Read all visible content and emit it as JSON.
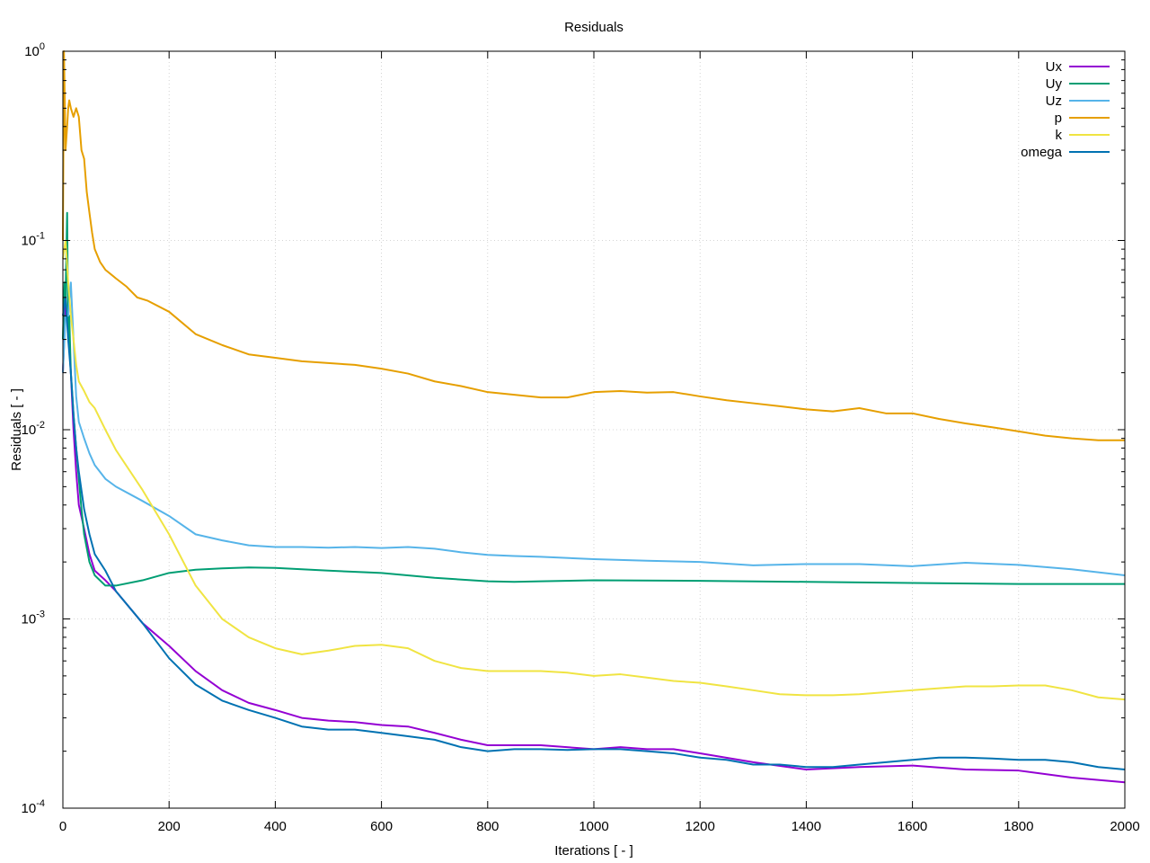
{
  "chart_data": {
    "type": "line",
    "title": "Residuals",
    "xlabel": "Iterations [ - ]",
    "ylabel": "Residuals [ - ]",
    "xlim": [
      0,
      2000
    ],
    "ylim": [
      0.0001,
      1
    ],
    "yscale": "log",
    "grid": true,
    "legend_position": "top-right",
    "x_ticks": [
      0,
      200,
      400,
      600,
      800,
      1000,
      1200,
      1400,
      1600,
      1800,
      2000
    ],
    "y_ticks": [
      {
        "value": 1,
        "mantissa": "10",
        "exp": "0"
      },
      {
        "value": 0.1,
        "mantissa": "10",
        "exp": "-1"
      },
      {
        "value": 0.01,
        "mantissa": "10",
        "exp": "-2"
      },
      {
        "value": 0.001,
        "mantissa": "10",
        "exp": "-3"
      },
      {
        "value": 0.0001,
        "mantissa": "10",
        "exp": "-4"
      }
    ],
    "series": [
      {
        "name": "Ux",
        "color": "#9400d3",
        "x": [
          0,
          5,
          10,
          15,
          20,
          25,
          30,
          40,
          50,
          60,
          80,
          100,
          150,
          200,
          250,
          300,
          350,
          400,
          450,
          500,
          550,
          600,
          650,
          700,
          750,
          800,
          850,
          900,
          1000,
          1050,
          1100,
          1150,
          1200,
          1300,
          1400,
          1500,
          1600,
          1700,
          1800,
          1900,
          2000
        ],
        "y": [
          0.02,
          0.045,
          0.035,
          0.02,
          0.01,
          0.006,
          0.004,
          0.003,
          0.0022,
          0.0018,
          0.0016,
          0.0014,
          0.00095,
          0.00072,
          0.00053,
          0.00042,
          0.00036,
          0.00033,
          0.0003,
          0.00029,
          0.000285,
          0.000275,
          0.00027,
          0.00025,
          0.00023,
          0.000215,
          0.000215,
          0.000215,
          0.000205,
          0.00021,
          0.000205,
          0.000205,
          0.000195,
          0.000175,
          0.00016,
          0.000165,
          0.000168,
          0.00016,
          0.000158,
          0.000145,
          0.000137
        ]
      },
      {
        "name": "Uy",
        "color": "#009e73",
        "x": [
          0,
          3,
          5,
          8,
          10,
          12,
          15,
          18,
          20,
          25,
          30,
          35,
          40,
          50,
          60,
          80,
          100,
          150,
          200,
          250,
          300,
          350,
          400,
          450,
          500,
          600,
          700,
          800,
          850,
          900,
          1000,
          1200,
          1400,
          1600,
          1800,
          2000
        ],
        "y": [
          0.03,
          0.06,
          0.05,
          0.14,
          0.03,
          0.04,
          0.02,
          0.015,
          0.012,
          0.008,
          0.0055,
          0.0038,
          0.0028,
          0.002,
          0.0017,
          0.0015,
          0.0015,
          0.0016,
          0.00175,
          0.00182,
          0.00185,
          0.00187,
          0.00186,
          0.00183,
          0.0018,
          0.00175,
          0.00165,
          0.00158,
          0.00157,
          0.00158,
          0.0016,
          0.00159,
          0.00157,
          0.00155,
          0.00153,
          0.00153
        ]
      },
      {
        "name": "Uz",
        "color": "#56b4e9",
        "x": [
          0,
          5,
          10,
          15,
          20,
          25,
          30,
          40,
          50,
          60,
          80,
          100,
          150,
          200,
          250,
          300,
          350,
          400,
          450,
          500,
          550,
          600,
          650,
          700,
          750,
          800,
          850,
          900,
          1000,
          1100,
          1200,
          1300,
          1400,
          1500,
          1600,
          1700,
          1800,
          1900,
          2000
        ],
        "y": [
          0.02,
          0.04,
          0.04,
          0.06,
          0.03,
          0.015,
          0.011,
          0.009,
          0.0075,
          0.0065,
          0.0055,
          0.005,
          0.0042,
          0.0035,
          0.0028,
          0.0026,
          0.00245,
          0.0024,
          0.0024,
          0.00238,
          0.0024,
          0.00237,
          0.0024,
          0.00235,
          0.00225,
          0.00218,
          0.00215,
          0.00213,
          0.00207,
          0.00203,
          0.002,
          0.00192,
          0.00195,
          0.00195,
          0.0019,
          0.00198,
          0.00193,
          0.00183,
          0.0017
        ]
      },
      {
        "name": "p",
        "color": "#e69f00",
        "x": [
          0,
          2,
          5,
          8,
          10,
          12,
          15,
          20,
          25,
          30,
          35,
          40,
          45,
          50,
          55,
          60,
          70,
          80,
          100,
          120,
          140,
          160,
          200,
          250,
          300,
          350,
          400,
          450,
          500,
          550,
          600,
          650,
          700,
          750,
          800,
          850,
          900,
          950,
          1000,
          1050,
          1100,
          1150,
          1200,
          1250,
          1300,
          1350,
          1400,
          1450,
          1500,
          1550,
          1600,
          1650,
          1700,
          1750,
          1800,
          1850,
          1900,
          1950,
          2000
        ],
        "y": [
          0.1,
          1.0,
          0.3,
          0.4,
          0.5,
          0.55,
          0.5,
          0.45,
          0.5,
          0.45,
          0.3,
          0.27,
          0.18,
          0.14,
          0.11,
          0.09,
          0.077,
          0.07,
          0.063,
          0.057,
          0.05,
          0.048,
          0.042,
          0.032,
          0.028,
          0.025,
          0.024,
          0.023,
          0.0225,
          0.022,
          0.021,
          0.0198,
          0.018,
          0.017,
          0.0158,
          0.0153,
          0.0148,
          0.0148,
          0.0158,
          0.016,
          0.0157,
          0.0158,
          0.015,
          0.0143,
          0.0138,
          0.0133,
          0.0128,
          0.0125,
          0.013,
          0.0122,
          0.0122,
          0.0114,
          0.0108,
          0.0103,
          0.0098,
          0.0093,
          0.009,
          0.0088,
          0.0088
        ]
      },
      {
        "name": "k",
        "color": "#f0e442",
        "x": [
          0,
          5,
          10,
          15,
          20,
          25,
          30,
          40,
          50,
          60,
          80,
          100,
          150,
          200,
          250,
          300,
          350,
          400,
          450,
          500,
          550,
          600,
          650,
          700,
          750,
          800,
          850,
          900,
          950,
          1000,
          1050,
          1100,
          1150,
          1200,
          1250,
          1300,
          1350,
          1400,
          1450,
          1500,
          1550,
          1600,
          1650,
          1700,
          1750,
          1800,
          1850,
          1900,
          1950,
          2000
        ],
        "y": [
          0.08,
          0.1,
          0.06,
          0.04,
          0.03,
          0.022,
          0.018,
          0.016,
          0.014,
          0.013,
          0.01,
          0.0078,
          0.0048,
          0.0028,
          0.0015,
          0.001,
          0.0008,
          0.0007,
          0.00065,
          0.00068,
          0.00072,
          0.00073,
          0.0007,
          0.0006,
          0.00055,
          0.00053,
          0.00053,
          0.00053,
          0.00052,
          0.0005,
          0.00051,
          0.00049,
          0.00047,
          0.00046,
          0.00044,
          0.00042,
          0.0004,
          0.000395,
          0.000395,
          0.0004,
          0.00041,
          0.00042,
          0.00043,
          0.00044,
          0.00044,
          0.000445,
          0.000445,
          0.00042,
          0.000385,
          0.000375
        ]
      },
      {
        "name": "omega",
        "color": "#0072b2",
        "x": [
          0,
          5,
          10,
          15,
          20,
          25,
          30,
          40,
          50,
          60,
          80,
          100,
          150,
          200,
          250,
          300,
          350,
          400,
          450,
          500,
          550,
          600,
          650,
          700,
          750,
          800,
          850,
          900,
          950,
          1000,
          1050,
          1100,
          1150,
          1200,
          1250,
          1300,
          1350,
          1400,
          1450,
          1500,
          1550,
          1600,
          1650,
          1700,
          1750,
          1800,
          1850,
          1900,
          1950,
          2000
        ],
        "y": [
          0.04,
          0.05,
          0.03,
          0.02,
          0.012,
          0.008,
          0.006,
          0.0038,
          0.0028,
          0.0022,
          0.0018,
          0.0014,
          0.00095,
          0.00062,
          0.00045,
          0.00037,
          0.00033,
          0.0003,
          0.00027,
          0.00026,
          0.00026,
          0.00025,
          0.00024,
          0.00023,
          0.00021,
          0.0002,
          0.000205,
          0.000205,
          0.000203,
          0.000205,
          0.000205,
          0.0002,
          0.000195,
          0.000185,
          0.00018,
          0.00017,
          0.00017,
          0.000165,
          0.000165,
          0.00017,
          0.000175,
          0.00018,
          0.000185,
          0.000185,
          0.000183,
          0.00018,
          0.00018,
          0.000175,
          0.000165,
          0.00016
        ]
      }
    ]
  }
}
